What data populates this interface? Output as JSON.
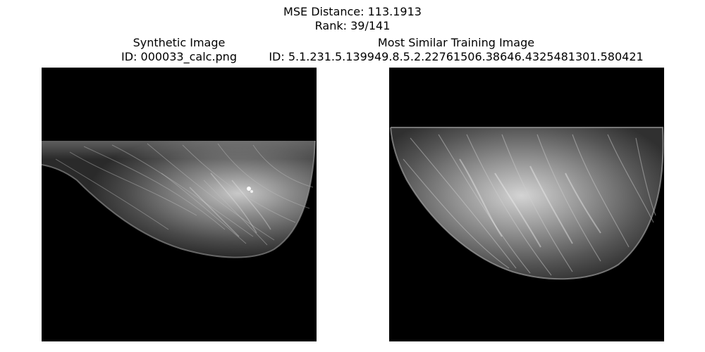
{
  "figure": {
    "suptitle_line1": "MSE Distance: 113.1913",
    "suptitle_line2": "Rank: 39/141"
  },
  "panels": [
    {
      "title_line1": "Synthetic Image",
      "title_line2": "ID: 000033_calc.png"
    },
    {
      "title_line1": "Most Similar Training Image",
      "title_line2": "ID: 5.1.231.5.139949.8.5.2.22761506.38646.4325481301.580421"
    }
  ]
}
